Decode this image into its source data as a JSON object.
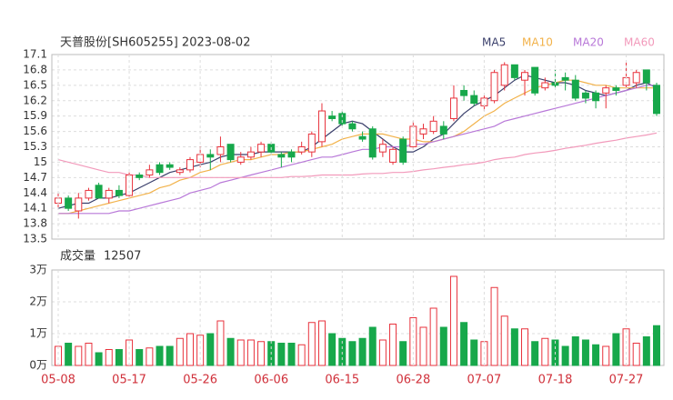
{
  "chart_data": [
    {
      "type": "candlestick",
      "title": "天普股份[SH605255] 2023-08-02",
      "open": [
        14.2,
        14.3,
        14.05,
        14.3,
        14.55,
        14.3,
        14.45,
        14.35,
        14.75,
        14.75,
        14.95,
        14.95,
        14.8,
        14.85,
        15.0,
        15.15,
        15.15,
        15.35,
        15.0,
        15.1,
        15.2,
        15.35,
        15.15,
        15.2,
        15.2,
        15.2,
        15.4,
        15.9,
        15.95,
        15.75,
        15.5,
        15.65,
        15.2,
        15.0,
        15.45,
        15.3,
        15.55,
        15.6,
        15.7,
        15.85,
        16.4,
        16.3,
        16.1,
        16.2,
        16.5,
        16.9,
        16.6,
        16.85,
        16.45,
        16.55,
        16.65,
        16.6,
        16.35,
        16.35,
        16.35,
        16.45,
        16.5,
        16.55,
        16.8,
        16.5
      ],
      "high": [
        14.4,
        14.35,
        14.4,
        14.5,
        14.6,
        14.5,
        14.55,
        14.8,
        14.8,
        14.95,
        15.0,
        15.0,
        14.9,
        15.1,
        15.3,
        15.25,
        15.5,
        15.35,
        15.2,
        15.3,
        15.4,
        15.4,
        15.2,
        15.25,
        15.4,
        15.6,
        16.15,
        16.0,
        16.0,
        15.8,
        15.6,
        15.7,
        15.45,
        15.3,
        15.5,
        15.8,
        15.75,
        15.9,
        15.8,
        16.5,
        16.5,
        16.4,
        16.3,
        16.8,
        16.95,
        16.9,
        16.8,
        16.85,
        16.65,
        16.8,
        16.75,
        16.7,
        16.4,
        16.4,
        16.5,
        16.5,
        16.95,
        16.8,
        16.8,
        16.55
      ],
      "low": [
        14.1,
        14.05,
        13.9,
        14.25,
        14.3,
        14.2,
        14.3,
        14.3,
        14.65,
        14.7,
        14.75,
        14.85,
        14.75,
        14.8,
        14.9,
        14.85,
        15.0,
        15.0,
        14.95,
        15.05,
        15.1,
        15.15,
        14.9,
        15.0,
        15.15,
        15.1,
        15.3,
        15.8,
        15.7,
        15.6,
        15.4,
        15.05,
        15.1,
        14.95,
        14.95,
        15.25,
        15.45,
        15.55,
        15.45,
        15.8,
        16.2,
        16.1,
        16.0,
        16.15,
        16.4,
        16.6,
        16.3,
        16.3,
        16.4,
        16.45,
        16.4,
        16.2,
        16.15,
        16.05,
        16.05,
        16.3,
        16.45,
        16.45,
        16.4,
        15.9
      ],
      "close": [
        14.3,
        14.1,
        14.3,
        14.45,
        14.3,
        14.45,
        14.35,
        14.75,
        14.7,
        14.85,
        14.8,
        14.9,
        14.85,
        15.05,
        15.15,
        15.1,
        15.3,
        15.05,
        15.1,
        15.2,
        15.35,
        15.2,
        15.1,
        15.1,
        15.3,
        15.55,
        16.0,
        15.85,
        15.75,
        15.65,
        15.45,
        15.1,
        15.35,
        15.25,
        15.0,
        15.7,
        15.65,
        15.8,
        15.55,
        16.25,
        16.3,
        16.15,
        16.25,
        16.75,
        16.9,
        16.65,
        16.75,
        16.35,
        16.55,
        16.5,
        16.6,
        16.25,
        16.25,
        16.2,
        16.45,
        16.4,
        16.65,
        16.75,
        16.55,
        15.95
      ],
      "up_color": "#e8323c",
      "down_color": "#17a84b",
      "series": [
        {
          "name": "MA5",
          "color": "#3a3f6b",
          "values": [
            14.1,
            14.15,
            14.2,
            14.2,
            14.3,
            14.3,
            14.35,
            14.4,
            14.5,
            14.6,
            14.7,
            14.8,
            14.85,
            14.9,
            14.95,
            15.0,
            15.1,
            15.15,
            15.15,
            15.15,
            15.2,
            15.2,
            15.2,
            15.2,
            15.2,
            15.3,
            15.45,
            15.6,
            15.75,
            15.8,
            15.75,
            15.6,
            15.45,
            15.3,
            15.2,
            15.2,
            15.3,
            15.45,
            15.55,
            15.75,
            15.95,
            16.1,
            16.2,
            16.3,
            16.45,
            16.6,
            16.7,
            16.65,
            16.6,
            16.55,
            16.55,
            16.5,
            16.4,
            16.35,
            16.3,
            16.35,
            16.4,
            16.5,
            16.55,
            16.45
          ]
        },
        {
          "name": "MA10",
          "color": "#f2b24a",
          "values": [
            14.0,
            14.0,
            14.05,
            14.1,
            14.15,
            14.2,
            14.25,
            14.3,
            14.35,
            14.4,
            14.5,
            14.55,
            14.65,
            14.7,
            14.8,
            14.85,
            14.95,
            15.0,
            15.05,
            15.05,
            15.1,
            15.15,
            15.15,
            15.2,
            15.2,
            15.25,
            15.3,
            15.35,
            15.45,
            15.5,
            15.55,
            15.55,
            15.55,
            15.5,
            15.45,
            15.45,
            15.4,
            15.4,
            15.45,
            15.5,
            15.6,
            15.75,
            15.9,
            16.0,
            16.15,
            16.25,
            16.35,
            16.45,
            16.5,
            16.55,
            16.6,
            16.6,
            16.55,
            16.5,
            16.5,
            16.45,
            16.45,
            16.45,
            16.45,
            16.45
          ]
        },
        {
          "name": "MA20",
          "color": "#b878d8",
          "values": [
            14.0,
            14.0,
            14.0,
            14.0,
            14.0,
            14.0,
            14.05,
            14.05,
            14.1,
            14.15,
            14.2,
            14.25,
            14.3,
            14.4,
            14.45,
            14.5,
            14.6,
            14.65,
            14.7,
            14.75,
            14.8,
            14.85,
            14.9,
            14.95,
            15.0,
            15.05,
            15.1,
            15.1,
            15.15,
            15.2,
            15.25,
            15.25,
            15.3,
            15.3,
            15.3,
            15.35,
            15.35,
            15.4,
            15.45,
            15.5,
            15.55,
            15.6,
            15.65,
            15.7,
            15.8,
            15.85,
            15.9,
            15.95,
            16.0,
            16.05,
            16.1,
            16.15,
            16.2,
            16.25,
            16.3,
            16.35,
            16.4,
            16.45,
            16.5,
            16.5
          ]
        },
        {
          "name": "MA60",
          "color": "#f29abb",
          "values": [
            15.05,
            15.0,
            14.95,
            14.9,
            14.85,
            14.8,
            14.8,
            14.75,
            14.75,
            14.7,
            14.7,
            14.7,
            14.7,
            14.7,
            14.7,
            14.7,
            14.7,
            14.7,
            14.7,
            14.7,
            14.7,
            14.7,
            14.7,
            14.72,
            14.72,
            14.73,
            14.75,
            14.75,
            14.75,
            14.75,
            14.77,
            14.78,
            14.78,
            14.8,
            14.8,
            14.82,
            14.85,
            14.87,
            14.9,
            14.92,
            14.95,
            14.97,
            15.0,
            15.05,
            15.08,
            15.1,
            15.15,
            15.18,
            15.2,
            15.23,
            15.27,
            15.3,
            15.33,
            15.37,
            15.4,
            15.43,
            15.47,
            15.5,
            15.53,
            15.57
          ]
        }
      ],
      "ylim": [
        13.5,
        17.1
      ],
      "yticks": [
        13.5,
        13.8,
        14.1,
        14.4,
        14.7,
        15,
        15.3,
        15.6,
        15.9,
        16.2,
        16.5,
        16.8,
        17.1
      ],
      "grid": true
    },
    {
      "type": "bar",
      "title": "成交量",
      "categories": [
        "05-08",
        null,
        null,
        null,
        null,
        null,
        null,
        "05-17",
        null,
        null,
        null,
        null,
        null,
        null,
        "05-26",
        null,
        null,
        null,
        null,
        null,
        null,
        "06-06",
        null,
        null,
        null,
        null,
        null,
        null,
        "06-15",
        null,
        null,
        null,
        null,
        null,
        null,
        "06-28",
        null,
        null,
        null,
        null,
        null,
        null,
        "07-07",
        null,
        null,
        null,
        null,
        null,
        null,
        "07-18",
        null,
        null,
        null,
        null,
        null,
        null,
        "07-27",
        null,
        null,
        null
      ],
      "values": [
        6000,
        7000,
        6000,
        7000,
        4000,
        5000,
        5000,
        8000,
        5000,
        5500,
        6000,
        6000,
        8500,
        10000,
        9500,
        10000,
        14000,
        8500,
        8000,
        8000,
        7500,
        7500,
        7000,
        7000,
        6500,
        13500,
        14000,
        10000,
        8500,
        7500,
        8500,
        12000,
        8000,
        13000,
        7500,
        15000,
        12000,
        18000,
        12000,
        28000,
        13500,
        8000,
        7500,
        24500,
        15500,
        11500,
        11500,
        7500,
        8500,
        8000,
        6000,
        9000,
        8000,
        6500,
        6000,
        10000,
        11500,
        7000,
        9000,
        12507
      ],
      "ylim": [
        0,
        30000
      ],
      "yticks": [
        {
          "value": 0,
          "label": "0万"
        },
        {
          "value": 10000,
          "label": "1万"
        },
        {
          "value": 20000,
          "label": "2万"
        },
        {
          "value": 30000,
          "label": "3万"
        }
      ],
      "grid": true
    }
  ]
}
